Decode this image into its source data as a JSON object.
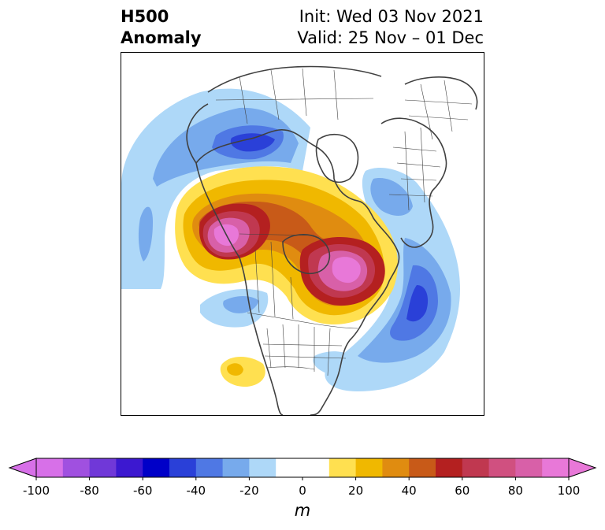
{
  "header": {
    "title_line1": "H500",
    "title_line2": "Anomaly",
    "init": "Init: Wed 03 Nov 2021",
    "valid": "Valid: 25 Nov – 01 Dec"
  },
  "colorbar": {
    "unit": "m",
    "levels": [
      -100,
      -90,
      -80,
      -70,
      -60,
      -50,
      -40,
      -30,
      -20,
      -10,
      10,
      20,
      30,
      40,
      50,
      60,
      70,
      80,
      90,
      100
    ],
    "tick_labels": [
      "-100",
      "-80",
      "-60",
      "-40",
      "-20",
      "0",
      "20",
      "40",
      "60",
      "80",
      "100"
    ],
    "colors": [
      "#d770e8",
      "#a050e0",
      "#7038d8",
      "#3c18d0",
      "#0000c8",
      "#2a40d8",
      "#4f78e4",
      "#77aaec",
      "#aed8f8",
      "#ffffff",
      "#ffe050",
      "#f0b800",
      "#e08c10",
      "#c85a18",
      "#b42020",
      "#c03850",
      "#d05080",
      "#d860a8",
      "#e878d8"
    ],
    "extend_low_color": "#d770e8",
    "extend_high_color": "#e878d8"
  }
}
